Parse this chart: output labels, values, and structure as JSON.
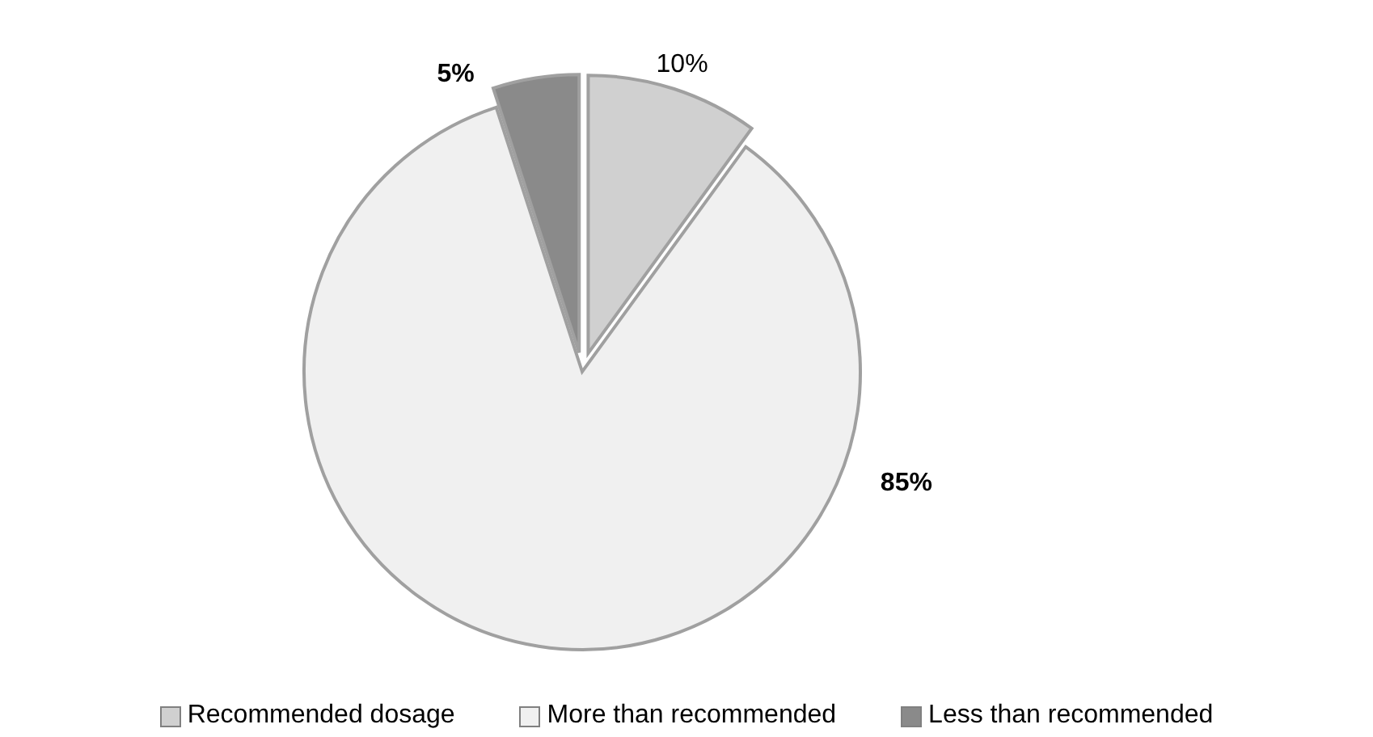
{
  "chart_data": {
    "type": "pie",
    "categories": [
      "Recommended dosage",
      "More than recommended",
      "Less than recommended"
    ],
    "values": [
      10,
      85,
      5
    ],
    "colors": [
      "#d0d0d0",
      "#f0f0f0",
      "#8a8a8a"
    ],
    "value_labels": [
      "10%",
      "85%",
      "5%"
    ],
    "legend": "bottom"
  }
}
